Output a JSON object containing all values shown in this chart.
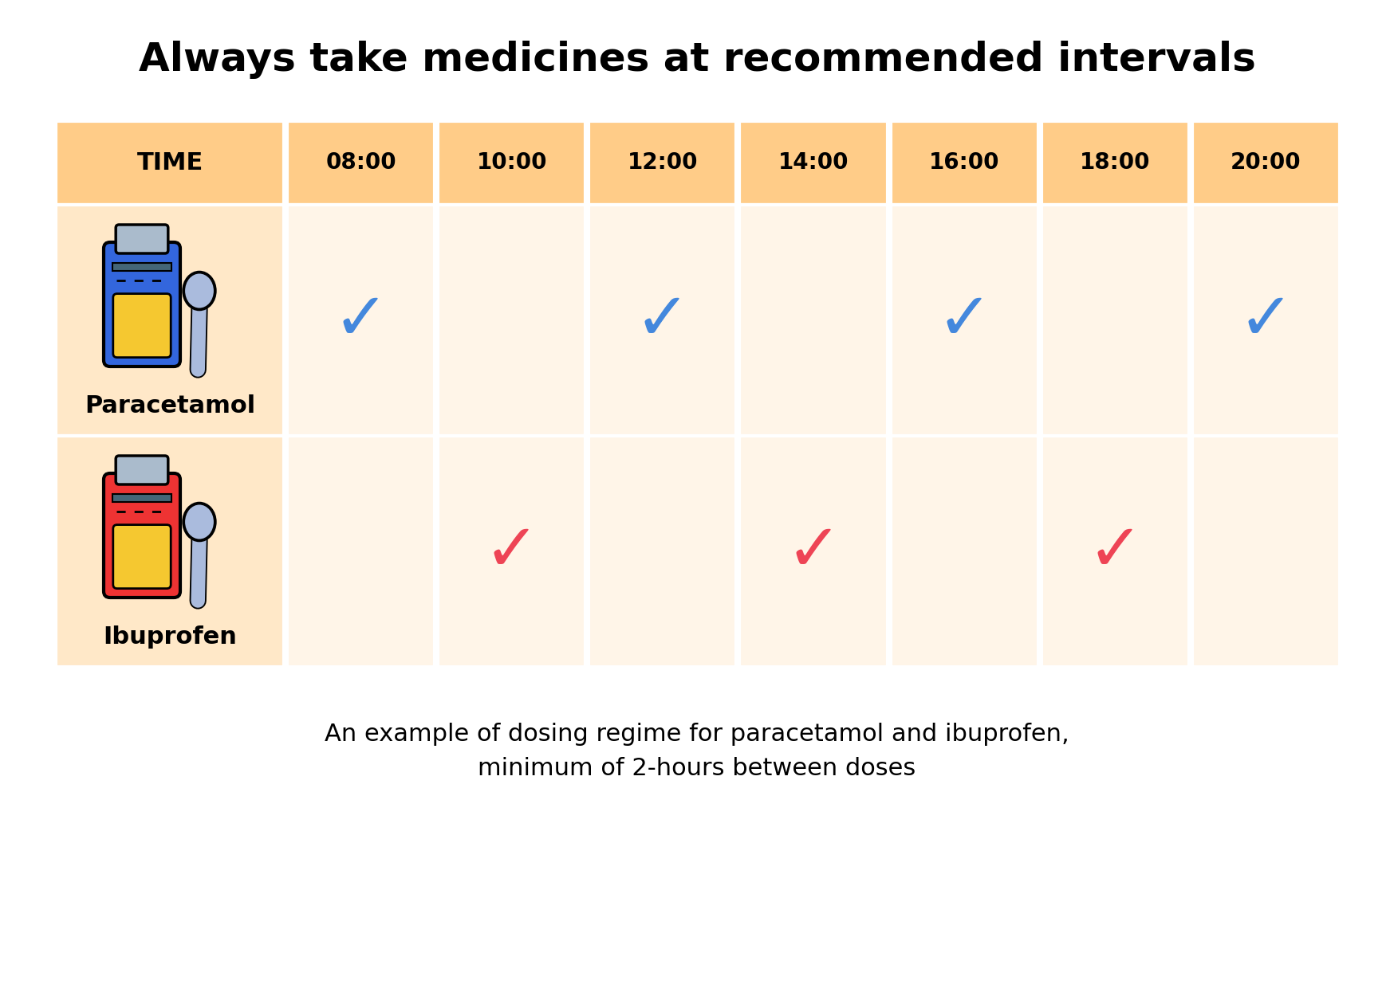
{
  "title": "Always take medicines at recommended intervals",
  "subtitle": "An example of dosing regime for paracetamol and ibuprofen,\nminimum of 2-hours between doses",
  "times": [
    "08:00",
    "10:00",
    "12:00",
    "14:00",
    "16:00",
    "18:00",
    "20:00"
  ],
  "paracetamol_doses": [
    1,
    0,
    1,
    0,
    1,
    0,
    1
  ],
  "ibuprofen_doses": [
    0,
    1,
    0,
    1,
    0,
    1,
    0
  ],
  "header_bg": "#FFCC88",
  "row_bg_dark": "#FFE8C8",
  "row_bg_light": "#FFF5E8",
  "white_bg": "#FFFFFF",
  "check_blue": "#4488DD",
  "check_red": "#EE4455",
  "bottle_blue": "#3366DD",
  "bottle_red": "#EE3333",
  "bottle_label": "#F5C830",
  "bottle_cap": "#AABBCC",
  "bottle_neck": "#446677",
  "spoon_color": "#AABBDD",
  "title_fontsize": 36,
  "subtitle_fontsize": 22,
  "time_fontsize": 20,
  "label_fontsize": 22,
  "check_fontsize": 60
}
